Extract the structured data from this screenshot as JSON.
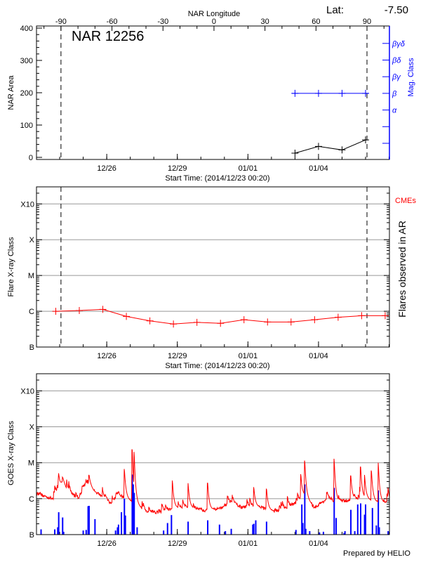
{
  "header": {
    "lat_label": "Lat:",
    "lat_value": "-7.50",
    "top_axis_title": "NAR Longitude",
    "region_title": "NAR 12256",
    "footer": "Prepared by HELIO"
  },
  "colors": {
    "axis": "#000000",
    "grid": "#999999",
    "flux": "#ff0000",
    "flare_bars": "#0000ff",
    "mag_class": "#0000ff",
    "area": "#000000",
    "flares": "#ff0000",
    "cmes": "#ff0000"
  },
  "time_axis": {
    "start": "2014-12-23T00:20",
    "end": "2015-01-07T00:20",
    "title": "Start Time: (2014/12/23 00:20)",
    "ticks": [
      {
        "at": "2014-12-26T00:00",
        "label": "12/26"
      },
      {
        "at": "2014-12-29T00:00",
        "label": "12/29"
      },
      {
        "at": "2015-01-01T00:00",
        "label": "01/01"
      },
      {
        "at": "2015-01-04T00:00",
        "label": "01/04"
      }
    ]
  },
  "chart_data": [
    {
      "type": "line",
      "title": "NAR 12256",
      "ylabel": "NAR Area",
      "ylim": [
        -6.5,
        406.5
      ],
      "yticks": [
        0,
        100,
        200,
        300,
        400
      ],
      "top_axis": {
        "label": "NAR Longitude",
        "xlim": [
          -104.4,
          103.2
        ],
        "ticks": [
          -90,
          -60,
          -30,
          0,
          30,
          60,
          90
        ]
      },
      "limb_longitudes": [
        -90,
        90
      ],
      "series": [
        {
          "key": "area",
          "color": "#000000",
          "x": [
            "2015-01-03T00:00",
            "2015-01-04T00:00",
            "2015-01-05T00:00",
            "2015-01-06T00:00"
          ],
          "y": [
            13,
            34,
            23,
            54
          ]
        }
      ],
      "mag_class_axis": {
        "label": "Mag. Class",
        "color": "#0000ff",
        "ticks": [
          "",
          "",
          "α",
          "β",
          "βγ",
          "βδ",
          "βγδ"
        ]
      },
      "mag_class": {
        "x": [
          "2015-01-03T00:00",
          "2015-01-04T00:00",
          "2015-01-05T00:00",
          "2015-01-06T00:00"
        ],
        "values": [
          "β",
          "β",
          "β",
          "β"
        ]
      }
    },
    {
      "type": "line",
      "ylabel": "Flare X-ray Class",
      "right_label": "Flares observed in AR",
      "right_marker": "CMEs",
      "scale": "log",
      "ylim": [
        1e-07,
        0.003
      ],
      "yticks": [
        {
          "v": 1e-07,
          "label": "B"
        },
        {
          "v": 1e-06,
          "label": "C"
        },
        {
          "v": 1e-05,
          "label": "M"
        },
        {
          "v": 0.0001,
          "label": "X"
        },
        {
          "v": 0.001,
          "label": "X10"
        }
      ],
      "grid": true,
      "limb_longitudes": [
        -90,
        90
      ],
      "series": [
        {
          "key": "flares",
          "color": "#ff0000",
          "x": [
            "2014-12-23T20:00",
            "2014-12-24T20:00",
            "2014-12-25T20:00",
            "2014-12-26T20:00",
            "2014-12-27T20:00",
            "2014-12-28T20:00",
            "2014-12-29T20:00",
            "2014-12-30T20:00",
            "2014-12-31T20:00",
            "2015-01-01T20:00",
            "2015-01-02T20:00",
            "2015-01-03T20:00",
            "2015-01-04T20:00",
            "2015-01-05T20:00",
            "2015-01-06T20:00"
          ],
          "y": [
            1e-06,
            1.05e-06,
            1.13e-06,
            7.2e-07,
            5.4e-07,
            4.4e-07,
            4.9e-07,
            4.6e-07,
            5.8e-07,
            5e-07,
            5e-07,
            5.8e-07,
            6.8e-07,
            7.5e-07,
            7.5e-07
          ]
        }
      ]
    },
    {
      "type": "line",
      "ylabel": "GOES X-ray Class",
      "scale": "log",
      "ylim": [
        1e-07,
        0.003
      ],
      "yticks": [
        {
          "v": 1e-07,
          "label": "B"
        },
        {
          "v": 1e-06,
          "label": "C"
        },
        {
          "v": 1e-05,
          "label": "M"
        },
        {
          "v": 0.0001,
          "label": "X"
        },
        {
          "v": 0.001,
          "label": "X10"
        }
      ],
      "grid": true,
      "flux_background": {
        "x": [
          "2014-12-23T00:20",
          "2014-12-23T17:00",
          "2014-12-24T00:00",
          "2014-12-24T03:00",
          "2014-12-24T08:00",
          "2014-12-24T19:00",
          "2014-12-25T03:00",
          "2014-12-25T11:00",
          "2014-12-25T19:00",
          "2014-12-26T04:00",
          "2014-12-26T12:00",
          "2014-12-26T20:00",
          "2014-12-27T04:00",
          "2014-12-27T16:00",
          "2014-12-28T06:00",
          "2014-12-28T21:00",
          "2014-12-29T11:00",
          "2014-12-30T03:00",
          "2014-12-30T20:00",
          "2014-12-31T07:00",
          "2014-12-31T18:00",
          "2015-01-01T07:00",
          "2015-01-02T03:00",
          "2015-01-02T11:00",
          "2015-01-03T00:00",
          "2015-01-03T09:00",
          "2015-01-03T20:00",
          "2015-01-04T09:00",
          "2015-01-04T20:00",
          "2015-01-05T07:00",
          "2015-01-06T00:00",
          "2015-01-06T10:00",
          "2015-01-07T00:00"
        ],
        "y": [
          1.35e-06,
          1e-06,
          2.1e-06,
          2.9e-06,
          1.6e-06,
          1e-06,
          2.9e-06,
          1.6e-06,
          1.2e-06,
          7.4e-07,
          1.35e-06,
          1e-06,
          7.4e-07,
          4.4e-07,
          4.2e-07,
          5.4e-07,
          5.7e-07,
          4.7e-07,
          5.1e-07,
          8e-07,
          5.7e-07,
          6.2e-07,
          4.4e-07,
          4.7e-07,
          7.4e-07,
          1.2e-06,
          5.7e-07,
          1e-06,
          8e-07,
          9e-07,
          1e-06,
          8e-07,
          7.4e-07
        ]
      },
      "flux_peaks": {
        "x": [
          "2014-12-23T23:00",
          "2014-12-24T03:00",
          "2014-12-25T06:00",
          "2014-12-26T18:00",
          "2014-12-27T02:00",
          "2014-12-27T04:00",
          "2014-12-28T19:00",
          "2014-12-29T11:00",
          "2014-12-30T07:00",
          "2015-01-01T06:00",
          "2015-01-01T19:00",
          "2015-01-03T06:00",
          "2015-01-03T10:00",
          "2015-01-04T16:00",
          "2015-01-05T09:00",
          "2015-01-05T19:00",
          "2015-01-05T23:00",
          "2015-01-06T06:00",
          "2015-01-06T13:00",
          "2015-01-06T23:00"
        ],
        "y": [
          5.1e-06,
          4e-06,
          4.5e-06,
          6.7e-06,
          2.36e-05,
          2e-05,
          3.2e-06,
          2.7e-06,
          2.7e-06,
          2.1e-06,
          1.9e-06,
          4.8e-06,
          1.15e-05,
          1.29e-05,
          4.3e-06,
          7.6e-06,
          4.6e-06,
          6.1e-06,
          1e-05,
          2e-06
        ]
      },
      "bars": {
        "x": [
          "2014-12-23T05:00",
          "2014-12-23T19:00",
          "2014-12-23T22:00",
          "2014-12-23T23:00",
          "2014-12-24T03:00",
          "2014-12-24T04:00",
          "2014-12-25T00:00",
          "2014-12-25T03:00",
          "2014-12-25T05:00",
          "2014-12-25T06:00",
          "2014-12-25T12:00",
          "2014-12-26T09:00",
          "2014-12-26T11:00",
          "2014-12-26T12:00",
          "2014-12-26T15:00",
          "2014-12-26T18:00",
          "2014-12-26T19:00",
          "2014-12-27T02:00",
          "2014-12-27T03:00",
          "2014-12-27T04:00",
          "2014-12-27T07:00",
          "2014-12-28T10:00",
          "2014-12-28T14:00",
          "2014-12-28T18:00",
          "2014-12-29T11:00",
          "2014-12-30T07:00",
          "2014-12-30T19:00",
          "2014-12-31T01:00",
          "2014-12-31T07:00",
          "2015-01-01T05:00",
          "2015-01-01T06:00",
          "2015-01-01T08:00",
          "2015-01-01T19:00",
          "2015-01-03T01:00",
          "2015-01-03T07:00",
          "2015-01-03T08:00",
          "2015-01-03T10:00",
          "2015-01-03T11:00",
          "2015-01-03T15:00",
          "2015-01-04T01:00",
          "2015-01-04T05:00",
          "2015-01-04T16:00",
          "2015-01-04T18:00",
          "2015-01-05T02:00",
          "2015-01-05T03:00",
          "2015-01-05T09:00",
          "2015-01-05T13:00",
          "2015-01-05T16:00",
          "2015-01-05T19:00",
          "2015-01-05T23:00",
          "2015-01-06T00:00",
          "2015-01-06T07:00",
          "2015-01-06T11:00",
          "2015-01-06T13:00",
          "2015-01-06T14:00",
          "2015-01-06T23:00"
        ],
        "y": [
          1.4e-07,
          1.4e-07,
          1.6e-07,
          4.2e-07,
          3e-07,
          1.2e-07,
          1.3e-07,
          1.35e-07,
          6.2e-07,
          6.3e-07,
          2.7e-07,
          1.3e-07,
          1.6e-07,
          1.9e-07,
          4.2e-07,
          1e-06,
          3.4e-07,
          4.7e-06,
          2.5e-06,
          1.45e-06,
          1.6e-07,
          1.3e-07,
          2.1e-07,
          3.5e-07,
          2.3e-07,
          2.5e-07,
          1.9e-07,
          1.25e-07,
          1.45e-07,
          1.9e-07,
          2e-07,
          2.5e-07,
          2.3e-07,
          1.35e-07,
          6.9e-07,
          2.1e-07,
          2.5e-06,
          1.45e-07,
          1.25e-07,
          1.15e-07,
          1.2e-07,
          2e-06,
          2.9e-07,
          1.1e-07,
          1.25e-07,
          4.9e-07,
          1.25e-07,
          6.9e-07,
          7.4e-07,
          3.6e-07,
          6.9e-07,
          5.5e-07,
          1.8e-07,
          1.7e-06,
          1.6e-07,
          1.25e-07
        ]
      }
    }
  ]
}
